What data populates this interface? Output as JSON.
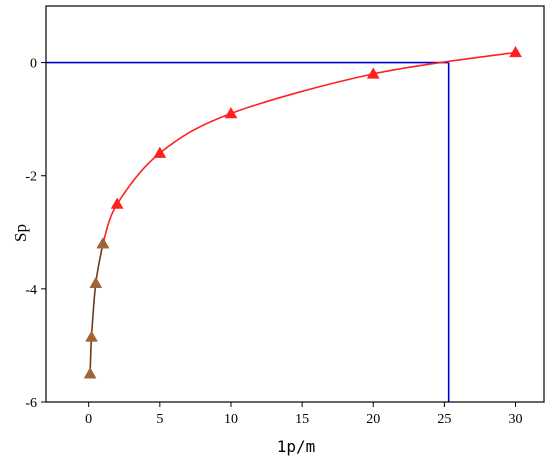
{
  "chart_data": {
    "type": "line",
    "title": "",
    "xlabel": "1p/m",
    "ylabel": "Sp",
    "xlim": [
      -3,
      32
    ],
    "ylim": [
      -6,
      1
    ],
    "xticks": [
      0,
      5,
      10,
      15,
      20,
      25,
      30
    ],
    "yticks": [
      0,
      -2,
      -4,
      -6
    ],
    "grid": false,
    "legend": "none",
    "series": [
      {
        "color": "#ff2020",
        "marker": "triangle",
        "points": [
          {
            "x": 1,
            "y": -3.2
          },
          {
            "x": 2,
            "y": -2.5
          },
          {
            "x": 5,
            "y": -1.6
          },
          {
            "x": 10,
            "y": -0.9
          },
          {
            "x": 20,
            "y": -0.2
          },
          {
            "x": 30,
            "y": 0.18
          }
        ]
      },
      {
        "color": "#6b3a1a",
        "marker_color": "#a0643a",
        "marker": "triangle",
        "points": [
          {
            "x": 0.1,
            "y": -5.5
          },
          {
            "x": 0.2,
            "y": -4.85
          },
          {
            "x": 0.5,
            "y": -3.9
          },
          {
            "x": 1,
            "y": -3.2
          }
        ]
      }
    ],
    "reference_lines": {
      "color": "#0000cc",
      "horizontal_y": 0,
      "vertical_x": 25.3
    }
  }
}
